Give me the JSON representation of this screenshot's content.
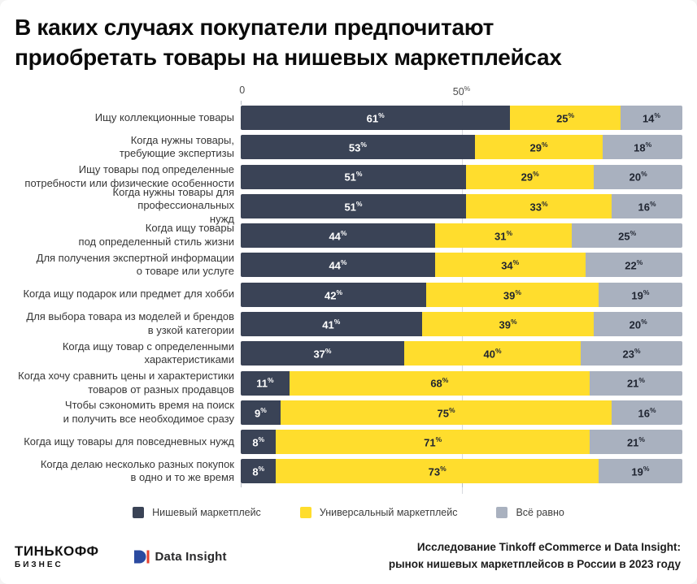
{
  "title": "В каких случаях покупатели предпочитают\nприобретать товары на нишевых маркетплейсах",
  "axis": {
    "tick0": "0",
    "tick50_num": "50",
    "percent_sign": "%"
  },
  "chart_data": {
    "type": "bar",
    "stacked": true,
    "orientation": "horizontal",
    "unit": "%",
    "xlim": [
      0,
      100
    ],
    "x_ticks": [
      0,
      50
    ],
    "grid": "vertical line at 50 only",
    "legend_position": "bottom",
    "title": "В каких случаях покупатели предпочитают приобретать товары на нишевых маркетплейсах",
    "categories": [
      "Ищу коллекционные товары",
      "Когда нужны товары,\nтребующие экспертизы",
      "Ищу товары под  определенные\nпотребности или физические особенности",
      "Когда нужны товары для профессиональных\nнужд",
      "Когда ищу товары\nпод определенный стиль жизни",
      "Для получения экспертной информации\nо товаре или услуге",
      "Когда ищу  подарок или предмет для хобби",
      "Для выбора товара из моделей и брендов\nв узкой категории",
      "Когда ищу товар с определенными\nхарактеристиками",
      "Когда хочу сравнить цены и характеристики\nтоваров от разных продавцов",
      "Чтобы сэкономить время на поиск\nи получить все необходимое сразу",
      "Когда ищу товары для повседневных нужд",
      "Когда делаю несколько разных покупок\nв одно и то же время"
    ],
    "series": [
      {
        "key": "niche",
        "name": "Нишевый маркетплейс",
        "color": "#3a4356",
        "text_color": "#ffffff",
        "values": [
          61,
          53,
          51,
          51,
          44,
          44,
          42,
          41,
          37,
          11,
          9,
          8,
          8
        ]
      },
      {
        "key": "universal",
        "name": "Универсальный маркетплейс",
        "color": "#ffdd2d",
        "text_color": "#1f2430",
        "values": [
          25,
          29,
          29,
          33,
          31,
          34,
          39,
          39,
          40,
          68,
          75,
          71,
          73
        ]
      },
      {
        "key": "any",
        "name": "Всё равно",
        "color": "#a9b1bf",
        "text_color": "#1f2430",
        "values": [
          14,
          18,
          20,
          16,
          25,
          22,
          19,
          20,
          23,
          21,
          16,
          21,
          19
        ]
      }
    ]
  },
  "footer": {
    "tinkoff_line1": "ТИНЬКОФФ",
    "tinkoff_line2": "БИЗНЕС",
    "datainsight_label": "Data Insight",
    "source": "Исследование Tinkoff eCommerce и Data Insight:\nрынок нишевых маркетплейсов в России в 2023 году",
    "di_blue": "#2b4aa0",
    "di_red": "#e5402f"
  }
}
